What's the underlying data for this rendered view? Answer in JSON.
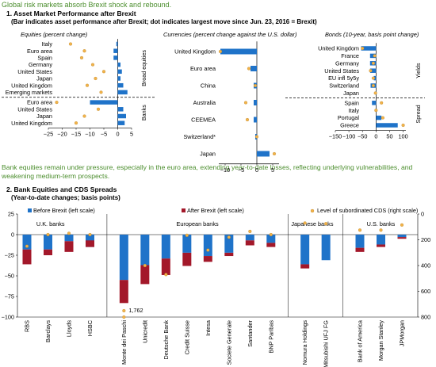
{
  "headline1": "Global risk markets absorb Brexit shock and rebound.",
  "panel1": {
    "title": "1. Asset Market Performance after Brexit",
    "subtitle": "(Bar indicates asset performance after Brexit; dot indicates largest move since Jun. 23, 2016 = Brexit)"
  },
  "headline2_line1": "Bank equities remain under pressure, especially in the euro area, extending year-to-date losses, reflecting underlying vulnerabilities, and",
  "headline2_line2": "weakening medium-term prospects.",
  "panel2": {
    "title": "2. Bank Equities and CDS Spreads",
    "subtitle": "(Year-to-date changes; basis points)"
  },
  "colors": {
    "bar": "#1f73c9",
    "after": "#a3182a",
    "dot": "#f2b34a",
    "headline": "#4a8d2c",
    "text": "#000000"
  },
  "chart_data": [
    {
      "type": "bar",
      "title": "Equities (percent change)",
      "orientation": "horizontal",
      "groups": [
        {
          "name": "Broad equities",
          "categories": [
            "Italy",
            "Euro area",
            "Spain",
            "Germany",
            "United States",
            "Japan",
            "United Kingdom",
            "Emerging markets"
          ],
          "bar": [
            -0.5,
            -1.5,
            -1.5,
            1.0,
            1.5,
            1.0,
            2.0,
            3.5
          ],
          "dot": [
            -17.0,
            -12.0,
            -13.0,
            -9.0,
            -5.0,
            -8.0,
            -11.0,
            -6.0
          ]
        },
        {
          "name": "Banks",
          "categories": [
            "Euro area",
            "United States",
            "Japan",
            "United Kingdom"
          ],
          "bar": [
            -10.0,
            2.0,
            3.0,
            2.5
          ],
          "dot": [
            -22.0,
            -7.0,
            -12.0,
            -15.0
          ]
        }
      ],
      "xticks": [
        "−25",
        "−20",
        "−15",
        "−10",
        "−5",
        "0",
        "5"
      ],
      "xlim": [
        -25,
        5
      ]
    },
    {
      "type": "bar",
      "title": "Currencies (percent change against the U.S. dollar)",
      "orientation": "horizontal",
      "categories": [
        "United Kingdom",
        "Euro area",
        "China",
        "Australia",
        "CEEMEA",
        "Switzerland*",
        "Japan"
      ],
      "bar": [
        -11.5,
        -2.0,
        -1.0,
        -1.0,
        -1.0,
        -0.5,
        4.0
      ],
      "dot": [
        -11.5,
        -2.5,
        -0.5,
        -3.5,
        -3.0,
        0.0,
        5.5
      ],
      "xticks": [
        "−10",
        "−5",
        "0",
        "5"
      ],
      "xlim": [
        -12,
        7
      ]
    },
    {
      "type": "bar",
      "title": "Bonds (10-year, basis point change)",
      "orientation": "horizontal",
      "groups": [
        {
          "name": "Yields",
          "categories": [
            "United Kingdom",
            "France",
            "Germany",
            "United States",
            "EU infl 5y5y",
            "Switzerland",
            "Japan"
          ],
          "bar": [
            -55.0,
            -22.0,
            -22.0,
            -22.0,
            -8.0,
            -20.0,
            0.0
          ],
          "dot": [
            -50.0,
            -5.0,
            -10.0,
            -20.0,
            -10.0,
            -10.0,
            -2.0
          ]
        },
        {
          "name": "Spread",
          "categories": [
            "Spain",
            "Italy",
            "Portugal",
            "Greece"
          ],
          "bar": [
            -15.0,
            0.0,
            20.0,
            80.0
          ],
          "dot": [
            20.0,
            0.0,
            25.0,
            100.0
          ]
        }
      ],
      "xticks": [
        "−150",
        "−100",
        "−50",
        "0",
        "50",
        "100"
      ],
      "xlim": [
        -150,
        110
      ]
    },
    {
      "type": "bar",
      "title": "Bank Equities and CDS Spreads",
      "legend": {
        "before": "Before Brexit (left scale)",
        "after": "After Brexit (left scale)",
        "dot": "Level of subordinated CDS (right scale)"
      },
      "group_labels": [
        "U.K. banks",
        "European banks",
        "Japanese banks",
        "U.S. banks"
      ],
      "categories": [
        "RBS",
        "Barclays",
        "Lloyds",
        "HSBC",
        "Monte dei Paschi",
        "Unicredit",
        "Deutsche Bank",
        "Credit Suisse",
        "Intesa",
        "Societe Generale",
        "Santander",
        "BNP Paribas",
        "Nomura Holdings",
        "Mitsubishi UFJ FG",
        "Bank of America",
        "Morgan Stanley",
        "JPMorgan"
      ],
      "before": [
        -18,
        -18,
        -8,
        -15,
        -55,
        -37,
        -29,
        -22,
        -26,
        -22,
        -7,
        -10,
        -36,
        -31,
        -16,
        -12,
        -3
      ],
      "after": [
        -18,
        -7,
        -13,
        8,
        -28,
        -23,
        -20,
        -16,
        -7,
        -4,
        -6,
        -5,
        -5,
        0,
        -5,
        -3,
        -2
      ],
      "cds": [
        250,
        160,
        150,
        160,
        1762,
        400,
        470,
        165,
        280,
        180,
        135,
        160,
        70,
        75,
        125,
        125,
        85
      ],
      "annotation": "1,762",
      "left_ticks": [
        "25",
        "0",
        "−25",
        "−50",
        "−75",
        "−100"
      ],
      "right_ticks": [
        "0",
        "200",
        "400",
        "600",
        "800"
      ],
      "left_ylim": [
        -100,
        25
      ],
      "right_ylim": [
        0,
        800
      ]
    }
  ]
}
